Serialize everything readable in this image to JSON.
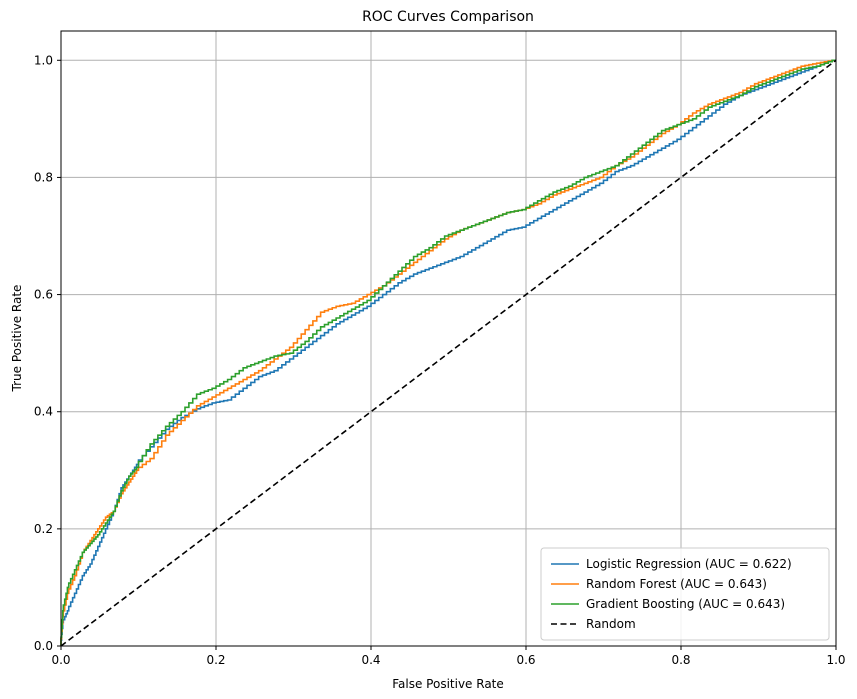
{
  "chart_data": {
    "type": "line",
    "title": "ROC Curves Comparison",
    "xlabel": "False Positive Rate",
    "ylabel": "True Positive Rate",
    "xlim": [
      0,
      1
    ],
    "ylim": [
      0,
      1.05
    ],
    "x_ticks": [
      "0.0",
      "0.2",
      "0.4",
      "0.6",
      "0.8",
      "1.0"
    ],
    "y_ticks": [
      "0.0",
      "0.2",
      "0.4",
      "0.6",
      "0.8",
      "1.0"
    ],
    "grid": true,
    "legend_position": "bottom-right",
    "series": [
      {
        "name": "Logistic Regression (AUC = 0.622)",
        "color": "#1f77b4",
        "style": "step",
        "points": [
          [
            0,
            0
          ],
          [
            0.003,
            0.04
          ],
          [
            0.01,
            0.06
          ],
          [
            0.02,
            0.09
          ],
          [
            0.03,
            0.12
          ],
          [
            0.04,
            0.14
          ],
          [
            0.05,
            0.17
          ],
          [
            0.06,
            0.2
          ],
          [
            0.07,
            0.23
          ],
          [
            0.08,
            0.27
          ],
          [
            0.09,
            0.29
          ],
          [
            0.1,
            0.31
          ],
          [
            0.12,
            0.34
          ],
          [
            0.14,
            0.37
          ],
          [
            0.16,
            0.39
          ],
          [
            0.18,
            0.405
          ],
          [
            0.2,
            0.415
          ],
          [
            0.22,
            0.42
          ],
          [
            0.24,
            0.44
          ],
          [
            0.26,
            0.46
          ],
          [
            0.28,
            0.47
          ],
          [
            0.3,
            0.49
          ],
          [
            0.32,
            0.51
          ],
          [
            0.34,
            0.53
          ],
          [
            0.36,
            0.55
          ],
          [
            0.38,
            0.565
          ],
          [
            0.4,
            0.58
          ],
          [
            0.42,
            0.6
          ],
          [
            0.44,
            0.62
          ],
          [
            0.46,
            0.635
          ],
          [
            0.48,
            0.645
          ],
          [
            0.5,
            0.655
          ],
          [
            0.52,
            0.665
          ],
          [
            0.54,
            0.68
          ],
          [
            0.56,
            0.695
          ],
          [
            0.58,
            0.71
          ],
          [
            0.6,
            0.715
          ],
          [
            0.62,
            0.73
          ],
          [
            0.64,
            0.745
          ],
          [
            0.66,
            0.76
          ],
          [
            0.68,
            0.775
          ],
          [
            0.7,
            0.79
          ],
          [
            0.72,
            0.81
          ],
          [
            0.74,
            0.82
          ],
          [
            0.76,
            0.835
          ],
          [
            0.78,
            0.85
          ],
          [
            0.8,
            0.865
          ],
          [
            0.82,
            0.885
          ],
          [
            0.84,
            0.905
          ],
          [
            0.86,
            0.925
          ],
          [
            0.88,
            0.94
          ],
          [
            0.9,
            0.95
          ],
          [
            0.92,
            0.96
          ],
          [
            0.94,
            0.97
          ],
          [
            0.96,
            0.98
          ],
          [
            0.98,
            0.99
          ],
          [
            1,
            1
          ]
        ]
      },
      {
        "name": "Random Forest (AUC = 0.643)",
        "color": "#ff7f0e",
        "style": "step",
        "points": [
          [
            0,
            0
          ],
          [
            0.003,
            0.05
          ],
          [
            0.01,
            0.09
          ],
          [
            0.02,
            0.12
          ],
          [
            0.03,
            0.16
          ],
          [
            0.04,
            0.18
          ],
          [
            0.05,
            0.2
          ],
          [
            0.06,
            0.22
          ],
          [
            0.07,
            0.23
          ],
          [
            0.08,
            0.26
          ],
          [
            0.09,
            0.28
          ],
          [
            0.1,
            0.3
          ],
          [
            0.12,
            0.32
          ],
          [
            0.14,
            0.36
          ],
          [
            0.16,
            0.385
          ],
          [
            0.18,
            0.41
          ],
          [
            0.2,
            0.425
          ],
          [
            0.22,
            0.44
          ],
          [
            0.24,
            0.455
          ],
          [
            0.26,
            0.47
          ],
          [
            0.28,
            0.49
          ],
          [
            0.3,
            0.51
          ],
          [
            0.32,
            0.54
          ],
          [
            0.34,
            0.57
          ],
          [
            0.36,
            0.58
          ],
          [
            0.38,
            0.585
          ],
          [
            0.4,
            0.6
          ],
          [
            0.42,
            0.615
          ],
          [
            0.44,
            0.635
          ],
          [
            0.46,
            0.655
          ],
          [
            0.48,
            0.675
          ],
          [
            0.5,
            0.695
          ],
          [
            0.52,
            0.71
          ],
          [
            0.54,
            0.72
          ],
          [
            0.56,
            0.73
          ],
          [
            0.58,
            0.74
          ],
          [
            0.6,
            0.745
          ],
          [
            0.62,
            0.755
          ],
          [
            0.64,
            0.77
          ],
          [
            0.66,
            0.78
          ],
          [
            0.68,
            0.79
          ],
          [
            0.7,
            0.8
          ],
          [
            0.72,
            0.82
          ],
          [
            0.74,
            0.835
          ],
          [
            0.76,
            0.855
          ],
          [
            0.78,
            0.875
          ],
          [
            0.8,
            0.89
          ],
          [
            0.82,
            0.91
          ],
          [
            0.84,
            0.925
          ],
          [
            0.86,
            0.935
          ],
          [
            0.88,
            0.945
          ],
          [
            0.9,
            0.96
          ],
          [
            0.92,
            0.97
          ],
          [
            0.94,
            0.98
          ],
          [
            0.96,
            0.99
          ],
          [
            0.98,
            0.995
          ],
          [
            1,
            1
          ]
        ]
      },
      {
        "name": "Gradient Boosting (AUC = 0.643)",
        "color": "#2ca02c",
        "style": "step",
        "points": [
          [
            0,
            0
          ],
          [
            0.003,
            0.06
          ],
          [
            0.01,
            0.1
          ],
          [
            0.02,
            0.13
          ],
          [
            0.03,
            0.16
          ],
          [
            0.04,
            0.175
          ],
          [
            0.05,
            0.19
          ],
          [
            0.06,
            0.21
          ],
          [
            0.07,
            0.23
          ],
          [
            0.08,
            0.265
          ],
          [
            0.09,
            0.29
          ],
          [
            0.1,
            0.305
          ],
          [
            0.12,
            0.345
          ],
          [
            0.14,
            0.375
          ],
          [
            0.16,
            0.4
          ],
          [
            0.18,
            0.43
          ],
          [
            0.2,
            0.44
          ],
          [
            0.22,
            0.455
          ],
          [
            0.24,
            0.475
          ],
          [
            0.26,
            0.485
          ],
          [
            0.28,
            0.495
          ],
          [
            0.3,
            0.5
          ],
          [
            0.32,
            0.52
          ],
          [
            0.34,
            0.545
          ],
          [
            0.36,
            0.56
          ],
          [
            0.38,
            0.575
          ],
          [
            0.4,
            0.59
          ],
          [
            0.42,
            0.615
          ],
          [
            0.44,
            0.64
          ],
          [
            0.46,
            0.665
          ],
          [
            0.48,
            0.68
          ],
          [
            0.5,
            0.7
          ],
          [
            0.52,
            0.71
          ],
          [
            0.54,
            0.72
          ],
          [
            0.56,
            0.73
          ],
          [
            0.58,
            0.74
          ],
          [
            0.6,
            0.745
          ],
          [
            0.62,
            0.76
          ],
          [
            0.64,
            0.775
          ],
          [
            0.66,
            0.785
          ],
          [
            0.68,
            0.8
          ],
          [
            0.7,
            0.81
          ],
          [
            0.72,
            0.82
          ],
          [
            0.74,
            0.84
          ],
          [
            0.76,
            0.86
          ],
          [
            0.78,
            0.88
          ],
          [
            0.8,
            0.89
          ],
          [
            0.82,
            0.9
          ],
          [
            0.84,
            0.92
          ],
          [
            0.86,
            0.93
          ],
          [
            0.88,
            0.94
          ],
          [
            0.9,
            0.955
          ],
          [
            0.92,
            0.965
          ],
          [
            0.94,
            0.975
          ],
          [
            0.96,
            0.985
          ],
          [
            0.98,
            0.99
          ],
          [
            1,
            1
          ]
        ]
      },
      {
        "name": "Random",
        "color": "#000000",
        "style": "dashed",
        "points": [
          [
            0,
            0
          ],
          [
            1,
            1
          ]
        ]
      }
    ]
  }
}
